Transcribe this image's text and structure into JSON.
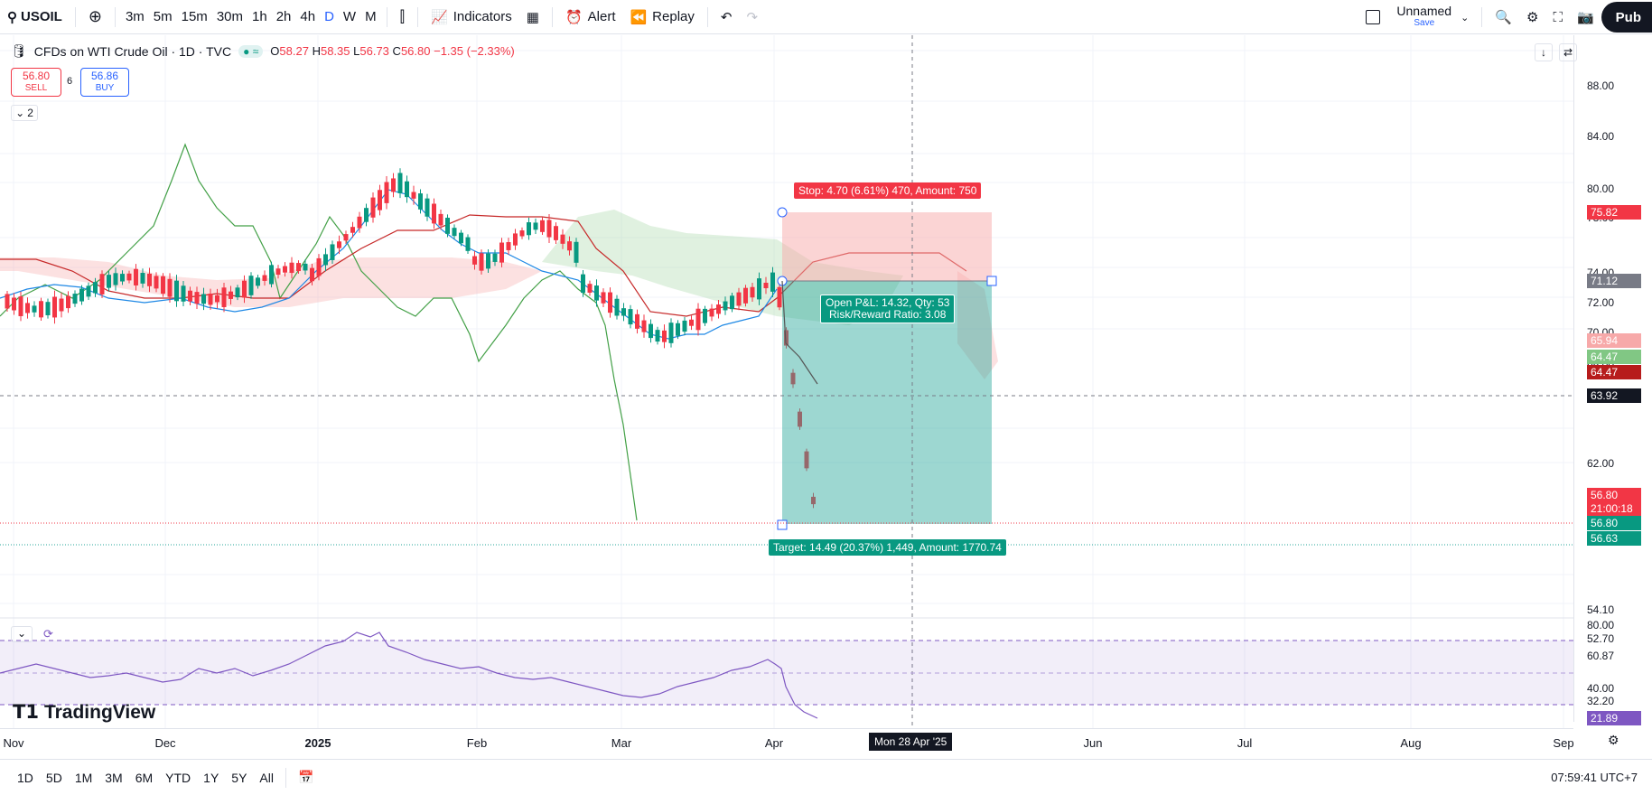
{
  "topbar": {
    "symbol": "USOIL",
    "intervals": [
      "3m",
      "5m",
      "15m",
      "30m",
      "1h",
      "2h",
      "4h",
      "D",
      "W",
      "M"
    ],
    "active_interval": "D",
    "indicators_label": "Indicators",
    "alert_label": "Alert",
    "replay_label": "Replay",
    "layout_name": "Unnamed",
    "layout_save": "Save",
    "publish_label": "Pub"
  },
  "legend": {
    "title": "CFDs on WTI Crude Oil · 1D · TVC",
    "o": "58.27",
    "h": "58.35",
    "l": "56.73",
    "c": "56.80",
    "change": "−1.35 (−2.33%)",
    "sell_price": "56.80",
    "sell_label": "SELL",
    "spread": "6",
    "buy_price": "56.86",
    "buy_label": "BUY",
    "collapsed_count": "2"
  },
  "price_axis": {
    "ticks": [
      "88.00",
      "84.00",
      "80.00",
      "78.00",
      "74.00",
      "72.00",
      "70.00",
      "68.00",
      "62.00",
      "60.00",
      "54.10",
      "52.70"
    ],
    "tags": [
      {
        "text": "75.82",
        "color": "#f23645"
      },
      {
        "text": "71.12",
        "color": "#787b86"
      },
      {
        "text": "65.94",
        "color": "#f7a9a9"
      },
      {
        "text": "64.47",
        "color": "#81c784"
      },
      {
        "text": "64.47",
        "color": "#b71c1c"
      },
      {
        "text": "63.92",
        "color": "#131722"
      },
      {
        "text": "56.80",
        "color": "#f23645"
      },
      {
        "text": "21:00:18",
        "color": "#f23645"
      },
      {
        "text": "56.80",
        "color": "#089981"
      },
      {
        "text": "56.63",
        "color": "#089981"
      }
    ],
    "rsi_ticks": [
      "80.00",
      "60.87",
      "40.00",
      "32.20"
    ],
    "rsi_tag": "21.89"
  },
  "time_axis": {
    "labels": [
      "Nov",
      "Dec",
      "2025",
      "Feb",
      "Mar",
      "Apr",
      "Jun",
      "Jul",
      "Aug",
      "Sep"
    ],
    "crosshair": "Mon 28 Apr '25"
  },
  "position": {
    "stop_label": "Stop: 4.70 (6.61%) 470, Amount: 750",
    "target_label": "Target: 14.49 (20.37%) 1,449, Amount: 1770.74",
    "pnl_line1": "Open P&L: 14.32, Qty: 53",
    "pnl_line2": "Risk/Reward Ratio: 3.08"
  },
  "bottombar": {
    "ranges": [
      "1D",
      "5D",
      "1M",
      "3M",
      "6M",
      "YTD",
      "1Y",
      "5Y",
      "All"
    ],
    "clock": "07:59:41 UTC+7"
  },
  "brand": "TradingView",
  "colors": {
    "up": "#089981",
    "down": "#f23645",
    "accent": "#2962ff"
  }
}
